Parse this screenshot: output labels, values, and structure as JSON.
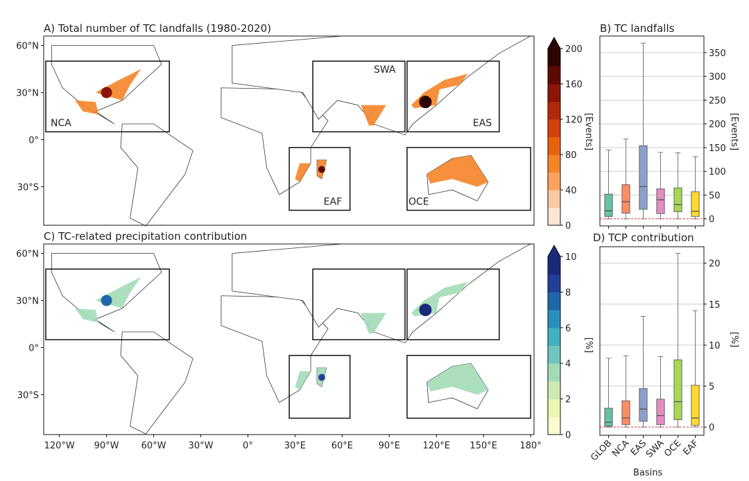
{
  "panels": {
    "a_title": "A) Total number of TC landfalls (1980-2020)",
    "b_title": "B) TC landfalls",
    "c_title": "C) TC-related precipitation contribution",
    "d_title": "D) TCP contribution"
  },
  "map": {
    "lon_ticks": [
      "120°W",
      "90°W",
      "60°W",
      "30°W",
      "0°",
      "30°E",
      "60°E",
      "90°E",
      "120°E",
      "150°E",
      "180°"
    ],
    "lat_ticks": [
      "60°N",
      "30°N",
      "0°",
      "30°S"
    ],
    "regions": [
      "NCA",
      "SWA",
      "EAS",
      "EAF",
      "OCE"
    ]
  },
  "colorbar_a": {
    "label": "[Events]",
    "ticks": [
      "0",
      "40",
      "80",
      "120",
      "160",
      "200"
    ],
    "colors": [
      "#fde6d3",
      "#fcc9a0",
      "#fba35f",
      "#f58427",
      "#e8610f",
      "#d2410b",
      "#b1270b",
      "#8c1509",
      "#5d0a05",
      "#2e0402"
    ],
    "extend": "max"
  },
  "colorbar_c": {
    "label": "[%]",
    "ticks": [
      "0",
      "2",
      "4",
      "6",
      "8",
      "10"
    ],
    "colors": [
      "#fbfdd0",
      "#eaf6b4",
      "#cdebb3",
      "#a3dbb7",
      "#6fc6be",
      "#42b0c3",
      "#2b8fbc",
      "#2166ab",
      "#233f97",
      "#1a2a78"
    ],
    "extend": "max"
  },
  "chart_data": [
    {
      "type": "boxplot",
      "title": "B) TC landfalls",
      "ylabel": "[Events]",
      "ylim": [
        -15,
        385
      ],
      "yticks": [
        "0",
        "50",
        "100",
        "150",
        "200",
        "250",
        "300",
        "350"
      ],
      "grid": true,
      "reference_line": 0,
      "categories": [
        "GLOB",
        "NCA",
        "EAS",
        "SWA",
        "OCE",
        "EAF"
      ],
      "colors": [
        "#66c2a5",
        "#fc8d62",
        "#8da0cb",
        "#e78ac3",
        "#a6d854",
        "#ffd92f"
      ],
      "boxes": [
        {
          "whislo": 0,
          "q1": 5,
          "median": 17,
          "q3": 52,
          "whishi": 145
        },
        {
          "whislo": 0,
          "q1": 12,
          "median": 36,
          "q3": 72,
          "whishi": 168
        },
        {
          "whislo": 0,
          "q1": 20,
          "median": 68,
          "q3": 154,
          "whishi": 370
        },
        {
          "whislo": 0,
          "q1": 11,
          "median": 40,
          "q3": 63,
          "whishi": 140
        },
        {
          "whislo": 0,
          "q1": 15,
          "median": 30,
          "q3": 65,
          "whishi": 139
        },
        {
          "whislo": 0,
          "q1": 5,
          "median": 16,
          "q3": 57,
          "whishi": 131
        }
      ]
    },
    {
      "type": "boxplot",
      "title": "D) TCP contribution",
      "xlabel": "Basins",
      "ylabel": "[%]",
      "ylim": [
        -1,
        22
      ],
      "yticks": [
        "0",
        "5",
        "10",
        "15",
        "20"
      ],
      "grid": true,
      "reference_line": 0,
      "categories": [
        "GLOB",
        "NCA",
        "EAS",
        "SWA",
        "OCE",
        "EAF"
      ],
      "colors": [
        "#66c2a5",
        "#fc8d62",
        "#8da0cb",
        "#e78ac3",
        "#a6d854",
        "#ffd92f"
      ],
      "boxes": [
        {
          "whislo": 0,
          "q1": 0.1,
          "median": 0.6,
          "q3": 2.3,
          "whishi": 8.4
        },
        {
          "whislo": 0,
          "q1": 0.3,
          "median": 1.1,
          "q3": 3.2,
          "whishi": 8.7
        },
        {
          "whislo": 0,
          "q1": 0.7,
          "median": 2.2,
          "q3": 4.7,
          "whishi": 13.5
        },
        {
          "whislo": 0,
          "q1": 0.3,
          "median": 1.4,
          "q3": 3.4,
          "whishi": 8.6
        },
        {
          "whislo": 0,
          "q1": 0.9,
          "median": 3.1,
          "q3": 8.2,
          "whishi": 21.2
        },
        {
          "whislo": 0,
          "q1": 0.2,
          "median": 1.1,
          "q3": 5.1,
          "whishi": 14.2
        }
      ]
    }
  ]
}
